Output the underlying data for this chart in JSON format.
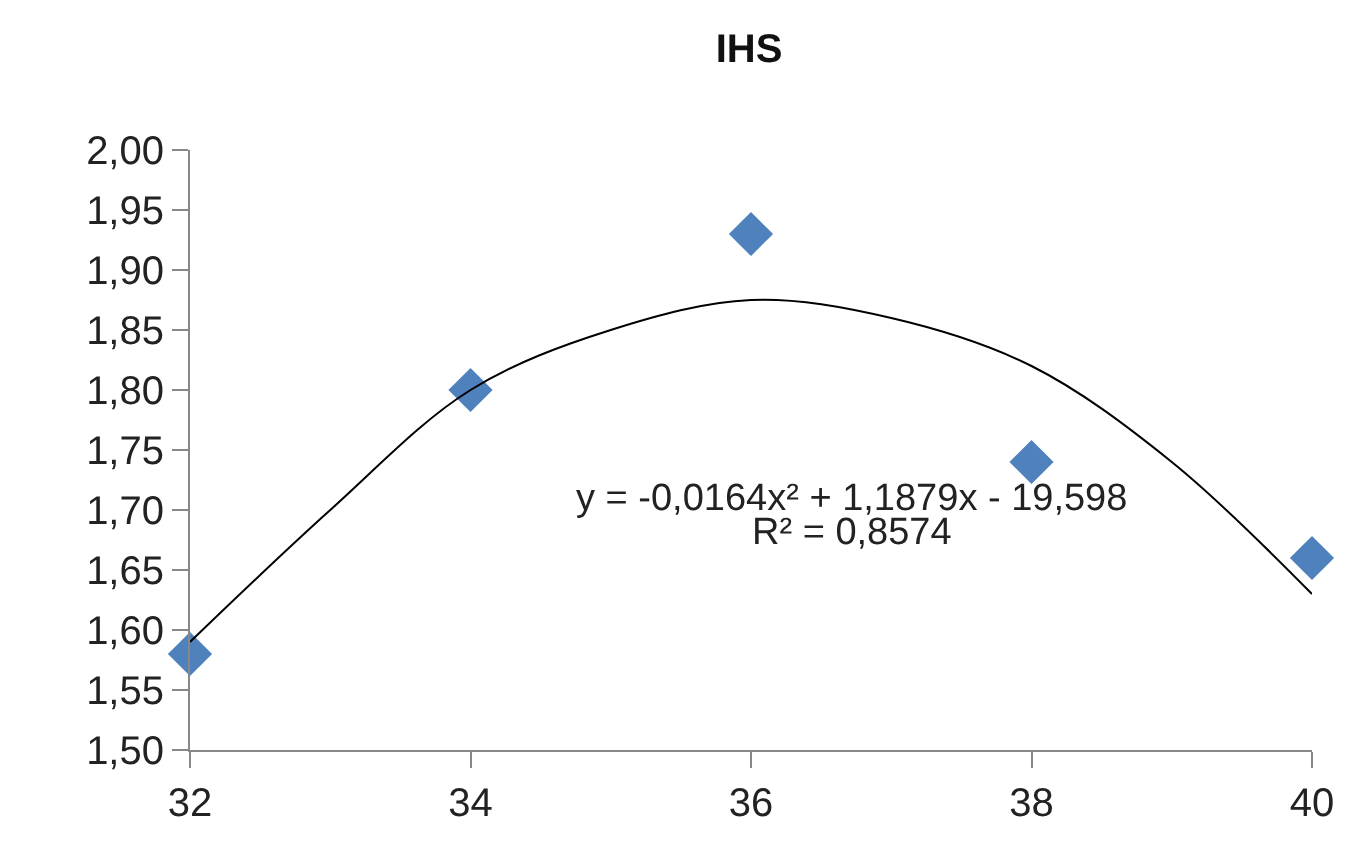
{
  "chart_data": {
    "type": "scatter",
    "title": "IHS",
    "x": [
      32,
      34,
      36,
      38,
      40
    ],
    "series": [
      {
        "color": "#4f81bd",
        "marker": "diamond",
        "values": [
          1.58,
          1.8,
          1.93,
          1.74,
          1.66
        ]
      },
      {
        "type": "line",
        "color": "#000000",
        "x": [
          32,
          33,
          34,
          35,
          36,
          37,
          38,
          39,
          40
        ],
        "values": [
          1.59,
          1.7,
          1.8,
          1.85,
          1.875,
          1.86,
          1.82,
          1.74,
          1.63
        ]
      }
    ],
    "annotations": [
      "y = -0,0164x² + 1,1879x - 19,598",
      "R² = 0,8574"
    ],
    "xlim": [
      32,
      40
    ],
    "xticks": [
      32,
      34,
      36,
      38,
      40
    ],
    "ylim": [
      1.5,
      2.0
    ],
    "yticks": [
      {
        "value": 1.5,
        "label": "1,50"
      },
      {
        "value": 1.55,
        "label": "1,55"
      },
      {
        "value": 1.6,
        "label": "1,60"
      },
      {
        "value": 1.65,
        "label": "1,65"
      },
      {
        "value": 1.7,
        "label": "1,70"
      },
      {
        "value": 1.75,
        "label": "1,75"
      },
      {
        "value": 1.8,
        "label": "1,80"
      },
      {
        "value": 1.85,
        "label": "1,85"
      },
      {
        "value": 1.9,
        "label": "1,90"
      },
      {
        "value": 1.95,
        "label": "1,95"
      },
      {
        "value": 2.0,
        "label": "2,00"
      }
    ],
    "grid": false
  }
}
